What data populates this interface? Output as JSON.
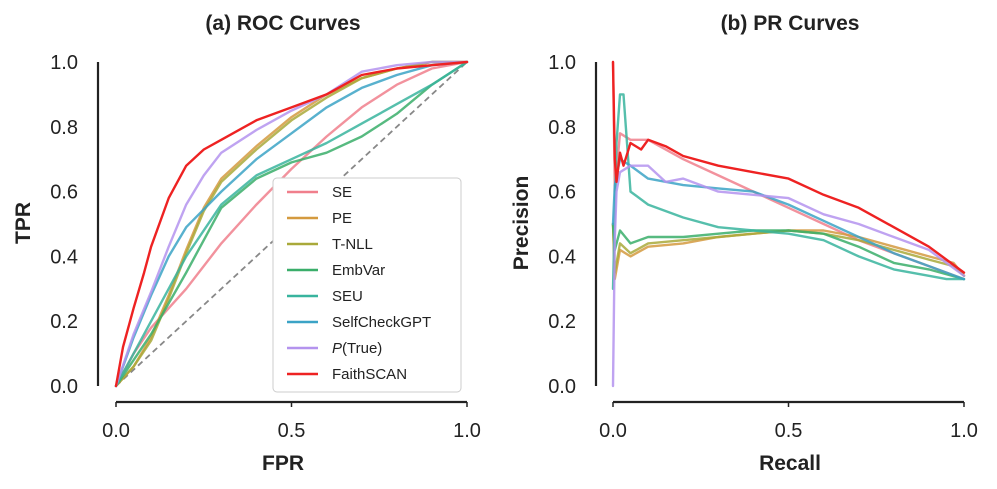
{
  "figure": {
    "colors": {
      "SE": "#f07f8c",
      "PE": "#d49a3f",
      "T-NLL": "#a9a93a",
      "EmbVar": "#3aae6a",
      "SEU": "#38b49e",
      "SelfCheckGPT": "#3ba3c6",
      "P(True)": "#b493ee",
      "FaithSCAN": "#ee2222"
    }
  },
  "chart_data": [
    {
      "type": "line",
      "title": "(a) ROC Curves",
      "xlabel": "FPR",
      "ylabel": "TPR",
      "xlim": [
        0,
        1
      ],
      "ylim": [
        0,
        1
      ],
      "xticks": [
        "0.0",
        "0.5",
        "1.0"
      ],
      "yticks": [
        "0.0",
        "0.2",
        "0.4",
        "0.6",
        "0.8",
        "1.0"
      ],
      "grid": false,
      "legend_position": "lower-right",
      "reference_line": {
        "style": "dashed",
        "from": [
          0,
          0
        ],
        "to": [
          1,
          1
        ]
      },
      "series": [
        {
          "name": "SE",
          "points": [
            [
              0,
              0
            ],
            [
              0.05,
              0.1
            ],
            [
              0.1,
              0.18
            ],
            [
              0.2,
              0.3
            ],
            [
              0.3,
              0.44
            ],
            [
              0.4,
              0.56
            ],
            [
              0.5,
              0.67
            ],
            [
              0.6,
              0.77
            ],
            [
              0.7,
              0.86
            ],
            [
              0.8,
              0.93
            ],
            [
              0.9,
              0.98
            ],
            [
              1,
              1
            ]
          ]
        },
        {
          "name": "PE",
          "points": [
            [
              0,
              0
            ],
            [
              0.05,
              0.06
            ],
            [
              0.1,
              0.15
            ],
            [
              0.15,
              0.28
            ],
            [
              0.2,
              0.42
            ],
            [
              0.25,
              0.55
            ],
            [
              0.3,
              0.64
            ],
            [
              0.4,
              0.74
            ],
            [
              0.5,
              0.83
            ],
            [
              0.6,
              0.9
            ],
            [
              0.7,
              0.95
            ],
            [
              0.8,
              0.98
            ],
            [
              0.9,
              1
            ],
            [
              1,
              1
            ]
          ]
        },
        {
          "name": "T-NLL",
          "points": [
            [
              0,
              0
            ],
            [
              0.05,
              0.06
            ],
            [
              0.1,
              0.14
            ],
            [
              0.15,
              0.27
            ],
            [
              0.2,
              0.41
            ],
            [
              0.25,
              0.54
            ],
            [
              0.3,
              0.63
            ],
            [
              0.4,
              0.73
            ],
            [
              0.5,
              0.82
            ],
            [
              0.6,
              0.89
            ],
            [
              0.7,
              0.95
            ],
            [
              0.8,
              0.98
            ],
            [
              0.9,
              1
            ],
            [
              1,
              1
            ]
          ]
        },
        {
          "name": "EmbVar",
          "points": [
            [
              0,
              0
            ],
            [
              0.05,
              0.08
            ],
            [
              0.1,
              0.16
            ],
            [
              0.2,
              0.35
            ],
            [
              0.3,
              0.55
            ],
            [
              0.4,
              0.64
            ],
            [
              0.5,
              0.69
            ],
            [
              0.6,
              0.72
            ],
            [
              0.7,
              0.77
            ],
            [
              0.8,
              0.84
            ],
            [
              0.9,
              0.93
            ],
            [
              1,
              1
            ]
          ]
        },
        {
          "name": "SEU",
          "points": [
            [
              0,
              0
            ],
            [
              0.05,
              0.1
            ],
            [
              0.1,
              0.2
            ],
            [
              0.2,
              0.4
            ],
            [
              0.3,
              0.56
            ],
            [
              0.4,
              0.65
            ],
            [
              0.5,
              0.7
            ],
            [
              0.6,
              0.75
            ],
            [
              0.7,
              0.81
            ],
            [
              0.8,
              0.87
            ],
            [
              0.9,
              0.93
            ],
            [
              1,
              1
            ]
          ]
        },
        {
          "name": "SelfCheckGPT",
          "points": [
            [
              0,
              0
            ],
            [
              0.05,
              0.15
            ],
            [
              0.1,
              0.28
            ],
            [
              0.15,
              0.4
            ],
            [
              0.2,
              0.49
            ],
            [
              0.3,
              0.6
            ],
            [
              0.4,
              0.7
            ],
            [
              0.5,
              0.78
            ],
            [
              0.6,
              0.86
            ],
            [
              0.7,
              0.92
            ],
            [
              0.8,
              0.96
            ],
            [
              0.9,
              0.99
            ],
            [
              1,
              1
            ]
          ]
        },
        {
          "name": "P(True)",
          "points": [
            [
              0,
              0
            ],
            [
              0.05,
              0.16
            ],
            [
              0.1,
              0.29
            ],
            [
              0.15,
              0.43
            ],
            [
              0.2,
              0.56
            ],
            [
              0.25,
              0.65
            ],
            [
              0.3,
              0.72
            ],
            [
              0.4,
              0.79
            ],
            [
              0.5,
              0.85
            ],
            [
              0.6,
              0.9
            ],
            [
              0.7,
              0.97
            ],
            [
              0.8,
              0.99
            ],
            [
              0.9,
              1
            ],
            [
              1,
              1
            ]
          ]
        },
        {
          "name": "FaithSCAN",
          "points": [
            [
              0,
              0
            ],
            [
              0.02,
              0.12
            ],
            [
              0.05,
              0.24
            ],
            [
              0.08,
              0.35
            ],
            [
              0.1,
              0.43
            ],
            [
              0.15,
              0.58
            ],
            [
              0.2,
              0.68
            ],
            [
              0.25,
              0.73
            ],
            [
              0.3,
              0.76
            ],
            [
              0.4,
              0.82
            ],
            [
              0.5,
              0.86
            ],
            [
              0.6,
              0.9
            ],
            [
              0.7,
              0.96
            ],
            [
              0.8,
              0.98
            ],
            [
              0.9,
              0.99
            ],
            [
              1,
              1
            ]
          ]
        }
      ]
    },
    {
      "type": "line",
      "title": "(b) PR Curves",
      "xlabel": "Recall",
      "ylabel": "Precision",
      "xlim": [
        0,
        1
      ],
      "ylim": [
        0,
        1
      ],
      "xticks": [
        "0.0",
        "0.5",
        "1.0"
      ],
      "yticks": [
        "0.0",
        "0.2",
        "0.4",
        "0.6",
        "0.8",
        "1.0"
      ],
      "grid": false,
      "series": [
        {
          "name": "SE",
          "points": [
            [
              0,
              1
            ],
            [
              0.005,
              0.6
            ],
            [
              0.02,
              0.78
            ],
            [
              0.05,
              0.76
            ],
            [
              0.1,
              0.76
            ],
            [
              0.2,
              0.7
            ],
            [
              0.3,
              0.65
            ],
            [
              0.4,
              0.6
            ],
            [
              0.5,
              0.55
            ],
            [
              0.6,
              0.5
            ],
            [
              0.7,
              0.45
            ],
            [
              0.8,
              0.41
            ],
            [
              0.9,
              0.37
            ],
            [
              1,
              0.33
            ]
          ]
        },
        {
          "name": "PE",
          "points": [
            [
              0,
              0.5
            ],
            [
              0.005,
              0.33
            ],
            [
              0.02,
              0.42
            ],
            [
              0.05,
              0.4
            ],
            [
              0.1,
              0.43
            ],
            [
              0.2,
              0.44
            ],
            [
              0.3,
              0.46
            ],
            [
              0.4,
              0.47
            ],
            [
              0.5,
              0.48
            ],
            [
              0.6,
              0.48
            ],
            [
              0.7,
              0.46
            ],
            [
              0.8,
              0.43
            ],
            [
              0.9,
              0.4
            ],
            [
              0.97,
              0.38
            ],
            [
              1,
              0.34
            ]
          ]
        },
        {
          "name": "T-NLL",
          "points": [
            [
              0,
              0.5
            ],
            [
              0.005,
              0.35
            ],
            [
              0.02,
              0.44
            ],
            [
              0.05,
              0.41
            ],
            [
              0.1,
              0.44
            ],
            [
              0.2,
              0.45
            ],
            [
              0.3,
              0.46
            ],
            [
              0.4,
              0.47
            ],
            [
              0.5,
              0.48
            ],
            [
              0.6,
              0.47
            ],
            [
              0.7,
              0.45
            ],
            [
              0.8,
              0.42
            ],
            [
              0.9,
              0.39
            ],
            [
              0.97,
              0.37
            ],
            [
              1,
              0.34
            ]
          ]
        },
        {
          "name": "EmbVar",
          "points": [
            [
              0,
              0.5
            ],
            [
              0.005,
              0.42
            ],
            [
              0.02,
              0.48
            ],
            [
              0.05,
              0.44
            ],
            [
              0.1,
              0.46
            ],
            [
              0.2,
              0.46
            ],
            [
              0.3,
              0.47
            ],
            [
              0.4,
              0.48
            ],
            [
              0.5,
              0.48
            ],
            [
              0.6,
              0.47
            ],
            [
              0.7,
              0.43
            ],
            [
              0.8,
              0.38
            ],
            [
              0.9,
              0.36
            ],
            [
              1,
              0.33
            ]
          ]
        },
        {
          "name": "SEU",
          "points": [
            [
              0,
              0.3
            ],
            [
              0.01,
              0.75
            ],
            [
              0.02,
              0.9
            ],
            [
              0.03,
              0.9
            ],
            [
              0.05,
              0.6
            ],
            [
              0.1,
              0.56
            ],
            [
              0.2,
              0.52
            ],
            [
              0.3,
              0.49
            ],
            [
              0.4,
              0.48
            ],
            [
              0.5,
              0.47
            ],
            [
              0.6,
              0.45
            ],
            [
              0.7,
              0.4
            ],
            [
              0.8,
              0.36
            ],
            [
              0.9,
              0.34
            ],
            [
              0.95,
              0.33
            ],
            [
              1,
              0.33
            ]
          ]
        },
        {
          "name": "SelfCheckGPT",
          "points": [
            [
              0,
              0.5
            ],
            [
              0.005,
              0.62
            ],
            [
              0.02,
              0.7
            ],
            [
              0.05,
              0.68
            ],
            [
              0.1,
              0.64
            ],
            [
              0.2,
              0.62
            ],
            [
              0.3,
              0.61
            ],
            [
              0.4,
              0.6
            ],
            [
              0.5,
              0.56
            ],
            [
              0.6,
              0.51
            ],
            [
              0.7,
              0.46
            ],
            [
              0.8,
              0.41
            ],
            [
              0.9,
              0.37
            ],
            [
              1,
              0.33
            ]
          ]
        },
        {
          "name": "P(True)",
          "points": [
            [
              0,
              0
            ],
            [
              0.005,
              0.45
            ],
            [
              0.01,
              0.6
            ],
            [
              0.02,
              0.66
            ],
            [
              0.05,
              0.68
            ],
            [
              0.1,
              0.68
            ],
            [
              0.15,
              0.63
            ],
            [
              0.2,
              0.64
            ],
            [
              0.3,
              0.6
            ],
            [
              0.4,
              0.59
            ],
            [
              0.5,
              0.58
            ],
            [
              0.6,
              0.53
            ],
            [
              0.7,
              0.5
            ],
            [
              0.8,
              0.46
            ],
            [
              0.9,
              0.42
            ],
            [
              1,
              0.34
            ]
          ]
        },
        {
          "name": "FaithSCAN",
          "points": [
            [
              0,
              1
            ],
            [
              0.005,
              0.7
            ],
            [
              0.01,
              0.63
            ],
            [
              0.02,
              0.72
            ],
            [
              0.03,
              0.68
            ],
            [
              0.05,
              0.75
            ],
            [
              0.08,
              0.73
            ],
            [
              0.1,
              0.76
            ],
            [
              0.15,
              0.74
            ],
            [
              0.2,
              0.71
            ],
            [
              0.3,
              0.68
            ],
            [
              0.4,
              0.66
            ],
            [
              0.5,
              0.64
            ],
            [
              0.6,
              0.59
            ],
            [
              0.7,
              0.55
            ],
            [
              0.8,
              0.49
            ],
            [
              0.9,
              0.43
            ],
            [
              1,
              0.35
            ]
          ]
        }
      ]
    }
  ]
}
